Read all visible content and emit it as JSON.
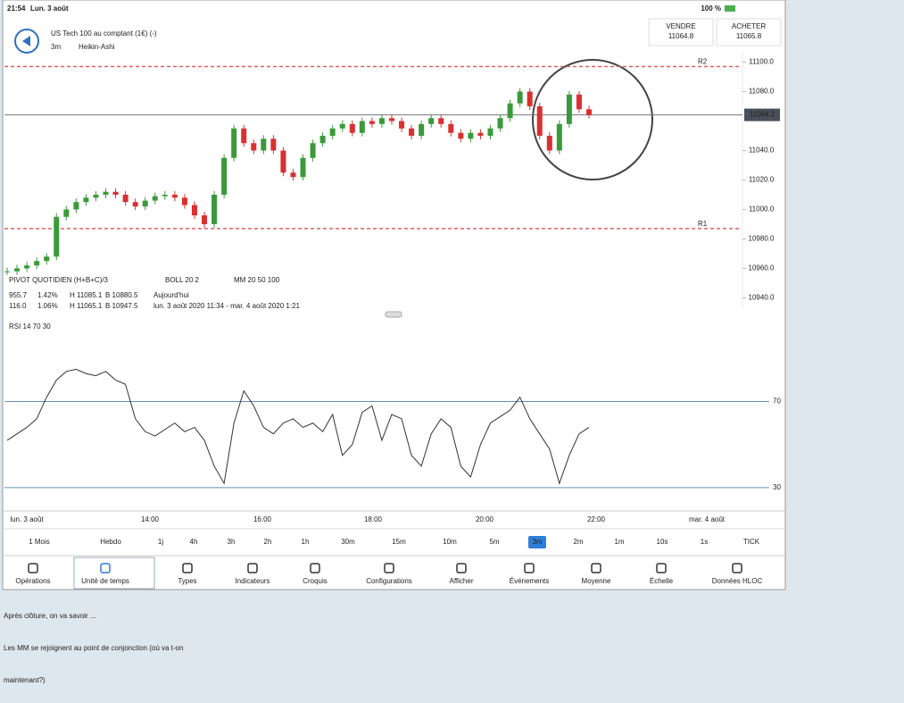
{
  "status_bar": {
    "time": "21:54",
    "date": "Lun. 3 août",
    "battery": "100 %"
  },
  "header": {
    "title": "US Tech 100 au comptant (1€) (-)",
    "interval": "3m",
    "chart_style": "Heikin-Ashi",
    "sell_label": "VENDRE",
    "sell_price": 11064.8,
    "buy_label": "ACHETER",
    "buy_price": 11065.8
  },
  "chart": {
    "ylim": [
      10933,
      11107
    ],
    "yticks": [
      {
        "value": 11100,
        "label": "11100.0"
      },
      {
        "value": 11080,
        "label": "11080.0"
      },
      {
        "value": 11040,
        "label": "11040.0"
      },
      {
        "value": 11020,
        "label": "11020.0"
      },
      {
        "value": 11000,
        "label": "11000.0"
      },
      {
        "value": 10980,
        "label": "10980.0"
      },
      {
        "value": 10960,
        "label": "10960.0"
      },
      {
        "value": 10940,
        "label": "10940.0"
      }
    ],
    "current_price": 11064.2,
    "pivots": [
      {
        "name": "R2",
        "value": 11097
      },
      {
        "name": "R1",
        "value": 10987
      }
    ],
    "price": {
      "values": [
        10958,
        10960,
        10962,
        10965,
        10968,
        10995,
        11000,
        11005,
        11008,
        11010,
        11012,
        11010,
        11005,
        11002,
        11006,
        11009,
        11010,
        11008,
        11003,
        10996,
        10990,
        11010,
        11035,
        11055,
        11045,
        11040,
        11048,
        11040,
        11025,
        11022,
        11035,
        11045,
        11050,
        11055,
        11058,
        11052,
        11060,
        11058,
        11062,
        11060,
        11055,
        11050,
        11058,
        11062,
        11058,
        11052,
        11048,
        11052,
        11050,
        11055,
        11062,
        11072,
        11080,
        11070,
        11050,
        11040,
        11058,
        11078,
        11068,
        11064.2
      ]
    },
    "indicators": [
      "PIVOT  QUOTIDIEN  (H+B+C)/3",
      "BOLL  20  2",
      "MM  20  50  100"
    ],
    "legend_rows": [
      [
        "955.7",
        "1.42%",
        "H 11085.1",
        "B 10880.5",
        "Aujourd'hui"
      ],
      [
        "116.0",
        "1.06%",
        "H 11065.1",
        "B 10947.5",
        "lun. 3 août 2020 11:34 - mar. 4 août 2020 1:21"
      ]
    ],
    "rsi": {
      "label": "RSI  14  70  30",
      "ylim": [
        20,
        108
      ],
      "yticks": [
        70,
        30
      ],
      "values": [
        52,
        55,
        58,
        62,
        72,
        80,
        84,
        85,
        83,
        82,
        84,
        80,
        78,
        62,
        56,
        54,
        57,
        60,
        56,
        58,
        52,
        40,
        32,
        60,
        75,
        68,
        58,
        55,
        60,
        62,
        58,
        60,
        56,
        64,
        45,
        50,
        65,
        68,
        52,
        64,
        62,
        45,
        40,
        55,
        62,
        58,
        40,
        35,
        50,
        60,
        63,
        66,
        72,
        62,
        55,
        48,
        32,
        45,
        55,
        58
      ]
    },
    "time_labels": [
      "lun. 3 août",
      "14:00",
      "16:00",
      "18:00",
      "20:00",
      "22:00",
      "mar. 4 août"
    ]
  },
  "timeframes": {
    "items": [
      "1 Mois",
      "Hebdo",
      "1j",
      "4h",
      "3h",
      "2h",
      "1h",
      "30m",
      "15m",
      "10m",
      "5m",
      "3m",
      "2m",
      "1m",
      "10s",
      "1s",
      "TICK"
    ],
    "selected": 11
  },
  "toolbar": {
    "items": [
      "Opérations",
      "Unité de temps",
      "Types",
      "Indicateurs",
      "Croquis",
      "Configurations",
      "Afficher",
      "Événements",
      "Moyenne",
      "Échelle",
      "Données HLOC"
    ],
    "selected": 1
  },
  "caption": [
    "Après clôture, on va savoir ...",
    "Les MM se rejoignent au point de conjonction (où va t-on",
    "maintenant?)"
  ]
}
